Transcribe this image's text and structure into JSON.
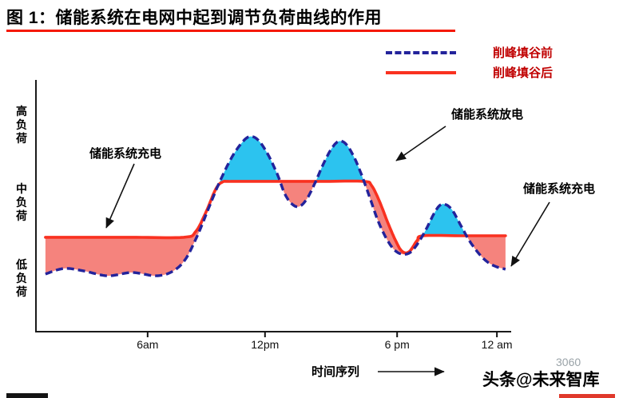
{
  "figure": {
    "title": "图 1：储能系统在电网中起到调节负荷曲线的作用"
  },
  "legend": [
    {
      "label": "削峰填谷前"
    },
    {
      "label": "削峰填谷后"
    }
  ],
  "annotations": {
    "charge_left": "储能系统充电",
    "discharge": "储能系统放电",
    "charge_right": "储能系统充电"
  },
  "x_axis_title": "时间序列",
  "watermark": {
    "text": "头条@未来智库",
    "shadow_text": "3060"
  },
  "colors": {
    "before_line": "#23239b",
    "after_line": "#f93120",
    "charge_fill": "#f5837d",
    "discharge_fill": "#2cc3ef",
    "title_rule": "#f51906",
    "legend_text": "#c00000"
  },
  "chart_data": {
    "type": "line",
    "title": "储能系统在电网中起到调节负荷曲线的作用",
    "xlabel": "时间序列",
    "x_unit_note": "x = percent of time axis (0-100), spanning roughly midnight through 12 am next day",
    "y_unit_note": "y = relative load (0-100), qualitative scale (low / medium / high load)",
    "x_ticks": [
      {
        "label": "6am",
        "x": 23.5
      },
      {
        "label": "12pm",
        "x": 48.2
      },
      {
        "label": "6 pm",
        "x": 76.0
      },
      {
        "label": "12 am",
        "x": 97.0
      }
    ],
    "y_levels": [
      {
        "label": "高负荷",
        "load": 82
      },
      {
        "label": "中负荷",
        "load": 51
      },
      {
        "label": "低负荷",
        "load": 21
      }
    ],
    "series": [
      {
        "name": "削峰填谷前",
        "style": "dashed",
        "color": "#23239b",
        "points": [
          [
            2.0,
            22.9
          ],
          [
            5.9,
            25.1
          ],
          [
            10.1,
            24.1
          ],
          [
            15.1,
            22.2
          ],
          [
            20.2,
            23.5
          ],
          [
            25.2,
            22.2
          ],
          [
            28.6,
            23.8
          ],
          [
            31.4,
            28.6
          ],
          [
            34.1,
            38.7
          ],
          [
            36.5,
            49.8
          ],
          [
            38.7,
            59.7
          ],
          [
            41.2,
            69.2
          ],
          [
            43.4,
            75.2
          ],
          [
            45.0,
            77.5
          ],
          [
            46.7,
            76.2
          ],
          [
            48.7,
            70.8
          ],
          [
            50.8,
            62.5
          ],
          [
            52.4,
            54.6
          ],
          [
            54.0,
            50.5
          ],
          [
            55.5,
            49.8
          ],
          [
            57.1,
            53.0
          ],
          [
            58.8,
            59.4
          ],
          [
            60.5,
            66.7
          ],
          [
            62.2,
            72.7
          ],
          [
            63.7,
            75.6
          ],
          [
            65.2,
            74.6
          ],
          [
            66.9,
            69.5
          ],
          [
            68.6,
            61.9
          ],
          [
            70.3,
            53.0
          ],
          [
            71.9,
            44.4
          ],
          [
            73.6,
            37.5
          ],
          [
            75.3,
            32.7
          ],
          [
            77.0,
            30.8
          ],
          [
            78.7,
            31.4
          ],
          [
            80.3,
            34.9
          ],
          [
            82.0,
            40.3
          ],
          [
            83.7,
            46.7
          ],
          [
            85.0,
            50.2
          ],
          [
            86.2,
            50.5
          ],
          [
            87.6,
            48.3
          ],
          [
            89.2,
            42.9
          ],
          [
            90.9,
            37.1
          ],
          [
            92.6,
            32.4
          ],
          [
            94.6,
            28.3
          ],
          [
            96.6,
            26.0
          ],
          [
            98.8,
            24.8
          ]
        ]
      },
      {
        "name": "削峰填谷后",
        "style": "solid",
        "color": "#f93120",
        "points": [
          [
            2.0,
            37.5
          ],
          [
            10.0,
            37.5
          ],
          [
            20.0,
            37.5
          ],
          [
            31.1,
            37.5
          ],
          [
            33.6,
            39.7
          ],
          [
            35.8,
            47.6
          ],
          [
            37.8,
            56.5
          ],
          [
            39.2,
            59.4
          ],
          [
            41.2,
            59.7
          ],
          [
            50.0,
            59.7
          ],
          [
            60.0,
            59.7
          ],
          [
            68.9,
            59.7
          ],
          [
            70.6,
            58.1
          ],
          [
            72.3,
            51.7
          ],
          [
            74.0,
            43.5
          ],
          [
            75.6,
            36.5
          ],
          [
            77.0,
            32.0
          ],
          [
            78.5,
            31.7
          ],
          [
            80.2,
            36.2
          ],
          [
            81.5,
            38.1
          ],
          [
            90.0,
            38.1
          ],
          [
            98.8,
            38.1
          ]
        ]
      }
    ],
    "fills": [
      {
        "label": "储能系统充电 (after-curve above before-curve)",
        "color": "#f5837d"
      },
      {
        "label": "储能系统放电 (before-curve above after-curve)",
        "color": "#2cc3ef"
      }
    ]
  }
}
